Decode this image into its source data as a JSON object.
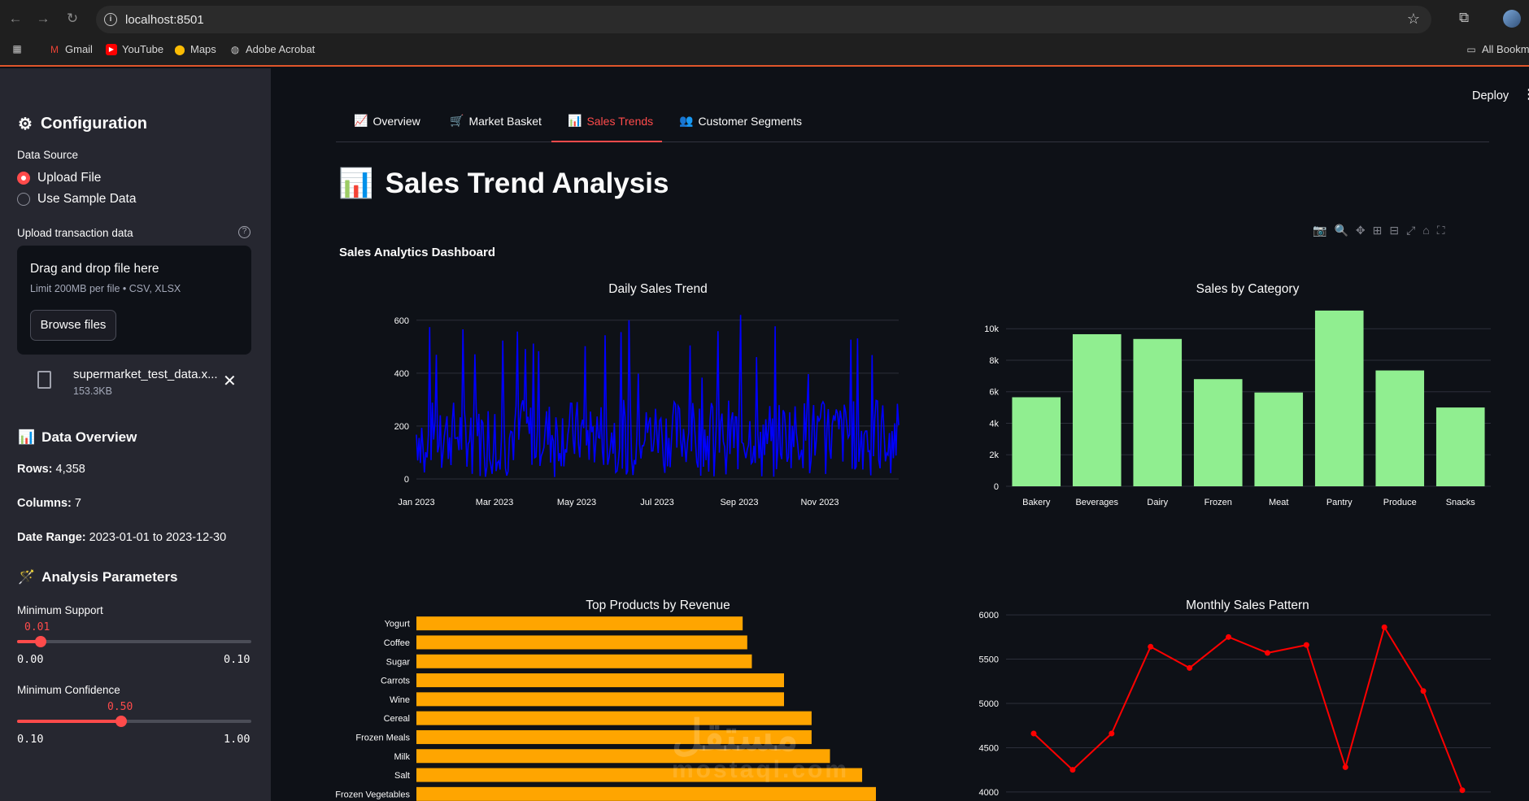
{
  "browser": {
    "url": "localhost:8501",
    "bookmarks": [
      "Gmail",
      "YouTube",
      "Maps",
      "Adobe Acrobat"
    ],
    "all_bookmarks": "All Bookm"
  },
  "sidebar": {
    "title": "Configuration",
    "data_source_label": "Data Source",
    "data_source_options": [
      "Upload File",
      "Use Sample Data"
    ],
    "data_source_selected": "Upload File",
    "upload_label": "Upload transaction data",
    "dropzone_title": "Drag and drop file here",
    "dropzone_limit": "Limit 200MB per file • CSV, XLSX",
    "browse_button": "Browse files",
    "file_name": "supermarket_test_data.x...",
    "file_size": "153.3KB",
    "overview_title": "Data Overview",
    "rows_label": "Rows:",
    "rows_value": "4,358",
    "columns_label": "Columns:",
    "columns_value": "7",
    "date_range_label": "Date Range:",
    "date_range_value": "2023-01-01 to 2023-12-30",
    "params_title": "Analysis Parameters",
    "min_support_label": "Minimum Support",
    "min_support_value": "0.01",
    "min_support_min": "0.00",
    "min_support_max": "0.10",
    "min_support_fraction": 0.1,
    "min_confidence_label": "Minimum Confidence",
    "min_confidence_value": "0.50",
    "min_confidence_min": "0.10",
    "min_confidence_max": "1.00",
    "min_confidence_fraction": 0.444
  },
  "header": {
    "deploy": "Deploy"
  },
  "tabs": [
    {
      "label": "Overview",
      "icon": "📈"
    },
    {
      "label": "Market Basket",
      "icon": "🛒"
    },
    {
      "label": "Sales Trends",
      "icon": "📊",
      "active": true
    },
    {
      "label": "Customer Segments",
      "icon": "👥"
    }
  ],
  "page_title": "Sales Trend Analysis",
  "dashboard_title": "Sales Analytics Dashboard",
  "watermark": "مستقل",
  "watermark_sub": "mostaql.com",
  "chart_data": [
    {
      "type": "line",
      "title": "Daily Sales Trend",
      "color": "#0000ff",
      "x_ticks": [
        "Jan 2023",
        "Mar 2023",
        "May 2023",
        "Jul 2023",
        "Sep 2023",
        "Nov 2023"
      ],
      "ylim": [
        0,
        630
      ],
      "y_ticks": [
        0,
        200,
        400,
        600
      ],
      "y_tick_labels": [
        "0",
        "200",
        "400",
        "600"
      ],
      "points": 364,
      "values_summary": "daily values fluctuating mostly between ~20 and ~350, peaks up to ~620"
    },
    {
      "type": "bar",
      "title": "Sales by Category",
      "color": "#90ee90",
      "categories": [
        "Bakery",
        "Beverages",
        "Dairy",
        "Frozen",
        "Meat",
        "Pantry",
        "Produce",
        "Snacks"
      ],
      "values": [
        5650,
        9650,
        9350,
        6800,
        5950,
        11150,
        7350,
        5000
      ],
      "ylim": [
        0,
        11300
      ],
      "y_ticks": [
        0,
        2000,
        4000,
        6000,
        8000,
        10000
      ],
      "y_tick_labels": [
        "0",
        "2k",
        "4k",
        "6k",
        "8k",
        "10k"
      ]
    },
    {
      "type": "bar",
      "orientation": "horizontal",
      "title": "Top Products by Revenue",
      "color": "#ffa500",
      "categories": [
        "Yogurt",
        "Coffee",
        "Sugar",
        "Carrots",
        "Wine",
        "Cereal",
        "Frozen Meals",
        "Milk",
        "Salt",
        "Frozen Vegetables"
      ],
      "values": [
        0.71,
        0.72,
        0.73,
        0.8,
        0.8,
        0.86,
        0.86,
        0.9,
        0.97,
        1.0
      ]
    },
    {
      "type": "line",
      "title": "Monthly Sales Pattern",
      "color": "#ff0000",
      "values": [
        4660,
        4250,
        4660,
        5640,
        5400,
        5750,
        5570,
        5660,
        4280,
        5860,
        5140,
        4020
      ],
      "ylim": [
        3990,
        6010
      ],
      "y_ticks": [
        4000,
        4500,
        5000,
        5500,
        6000
      ],
      "y_tick_labels": [
        "4000",
        "4500",
        "5000",
        "5500",
        "6000"
      ]
    }
  ]
}
